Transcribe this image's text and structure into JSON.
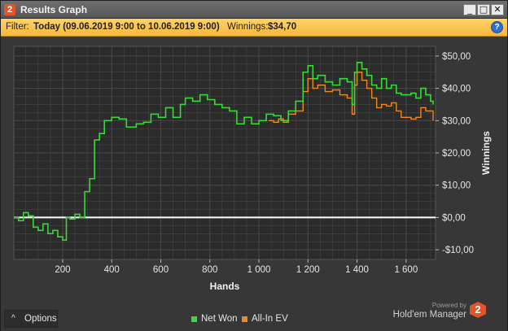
{
  "window": {
    "title": "Results Graph",
    "app_badge": "2",
    "controls": {
      "minimize": "_",
      "maximize": "□",
      "close": "✕"
    }
  },
  "filter": {
    "label": "Filter:",
    "value": "Today (09.06.2019 9:00 to 10.06.2019 9:00)",
    "winnings_label": "Winnings:",
    "winnings_value": "$34,70",
    "help_icon": "question-icon"
  },
  "footer": {
    "options_caret": "^",
    "options_label": "Options",
    "powered_by": "Powered by",
    "brand": "Hold'em Manager",
    "brand_badge": "2"
  },
  "colors": {
    "net_won": "#3dd63d",
    "all_in_ev": "#e8892b",
    "zero_line": "#ffffff",
    "grid": "#4a4a4a"
  },
  "chart_data": {
    "type": "line",
    "xlabel": "Hands",
    "ylabel": "Winnings",
    "xlim": [
      1,
      1720
    ],
    "ylim": [
      -13,
      53
    ],
    "x_ticks": [
      200,
      400,
      600,
      800,
      1000,
      1200,
      1400,
      1600
    ],
    "x_tick_labels": [
      "200",
      "400",
      "600",
      "800",
      "1 000",
      "1 200",
      "1 400",
      "1 600"
    ],
    "y_ticks": [
      -10,
      0,
      10,
      20,
      30,
      40,
      50
    ],
    "y_tick_labels": [
      "-$10,00",
      "$0,00",
      "$10,00",
      "$20,00",
      "$30,00",
      "$40,00",
      "$50,00"
    ],
    "legend": {
      "placement": "bottom-center"
    },
    "series": [
      {
        "name": "Net Won",
        "x": [
          1,
          20,
          40,
          60,
          80,
          100,
          120,
          140,
          160,
          180,
          200,
          215,
          230,
          250,
          270,
          290,
          310,
          330,
          350,
          370,
          400,
          430,
          460,
          500,
          530,
          560,
          590,
          620,
          650,
          680,
          700,
          730,
          760,
          790,
          820,
          850,
          880,
          910,
          940,
          970,
          1000,
          1030,
          1060,
          1090,
          1120,
          1150,
          1180,
          1200,
          1220,
          1240,
          1270,
          1300,
          1330,
          1360,
          1380,
          1390,
          1400,
          1420,
          1440,
          1460,
          1480,
          1500,
          1520,
          1540,
          1560,
          1580,
          1600,
          1620,
          1640,
          1660,
          1680,
          1700,
          1710
        ],
        "values": [
          0,
          -1,
          1.5,
          0.5,
          -3,
          -4,
          -2,
          -5,
          -4,
          -6,
          -7,
          0,
          -0.5,
          1,
          0,
          8,
          12,
          24,
          26,
          30,
          31,
          30.5,
          28,
          29,
          29.5,
          32,
          31,
          34,
          31,
          35,
          37,
          36,
          38,
          36.5,
          35,
          34,
          33,
          29,
          31,
          29,
          30,
          32,
          31.5,
          30,
          33,
          36,
          45,
          47,
          43,
          44,
          42,
          41,
          43,
          42,
          35,
          45,
          48,
          46,
          44,
          41,
          40,
          43,
          40,
          41,
          38.5,
          38,
          38,
          38.5,
          37,
          40,
          38,
          36,
          35
        ]
      },
      {
        "name": "All-In EV",
        "x": [
          1040,
          1060,
          1080,
          1100,
          1120,
          1150,
          1180,
          1200,
          1220,
          1240,
          1270,
          1300,
          1330,
          1360,
          1380,
          1390,
          1400,
          1420,
          1440,
          1460,
          1480,
          1500,
          1520,
          1540,
          1560,
          1580,
          1600,
          1620,
          1640,
          1660,
          1680,
          1700,
          1710
        ],
        "values": [
          30,
          29.5,
          30.5,
          29.5,
          32,
          33,
          39,
          43,
          40,
          41,
          39,
          39.5,
          38,
          37,
          32,
          41,
          45,
          42.5,
          40,
          37,
          34,
          35,
          34.5,
          35.5,
          33,
          31,
          31,
          30.5,
          31,
          34,
          33,
          33,
          30
        ]
      }
    ]
  }
}
